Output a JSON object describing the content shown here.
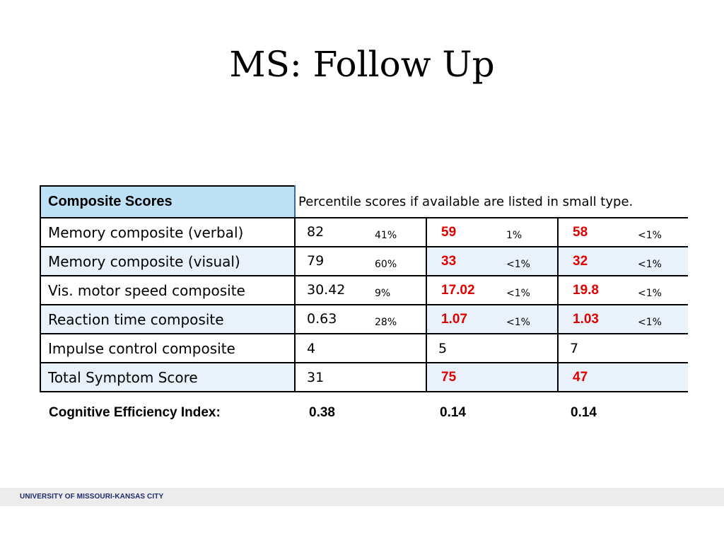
{
  "title": "MS: Follow Up",
  "table": {
    "header_label": "Composite Scores",
    "header_note": "Percentile scores if available are listed in small type.",
    "rows": [
      {
        "label": "Memory composite (verbal)",
        "cells": [
          {
            "value": "82",
            "pct": "41%",
            "flag": false
          },
          {
            "value": "59",
            "pct": "1%",
            "flag": true
          },
          {
            "value": "58",
            "pct": "<1%",
            "flag": true
          }
        ]
      },
      {
        "label": "Memory composite (visual)",
        "cells": [
          {
            "value": "79",
            "pct": "60%",
            "flag": false
          },
          {
            "value": "33",
            "pct": "<1%",
            "flag": true
          },
          {
            "value": "32",
            "pct": "<1%",
            "flag": true
          }
        ]
      },
      {
        "label": "Vis. motor speed composite",
        "cells": [
          {
            "value": "30.42",
            "pct": "9%",
            "flag": false
          },
          {
            "value": "17.02",
            "pct": "<1%",
            "flag": true
          },
          {
            "value": "19.8",
            "pct": "<1%",
            "flag": true
          }
        ]
      },
      {
        "label": "Reaction time composite",
        "cells": [
          {
            "value": "0.63",
            "pct": "28%",
            "flag": false
          },
          {
            "value": "1.07",
            "pct": "<1%",
            "flag": true
          },
          {
            "value": "1.03",
            "pct": "<1%",
            "flag": true
          }
        ]
      },
      {
        "label": "Impulse control composite",
        "cells": [
          {
            "value": "4",
            "pct": "",
            "flag": false
          },
          {
            "value": "5",
            "pct": "",
            "flag": false
          },
          {
            "value": "7",
            "pct": "",
            "flag": false
          }
        ]
      },
      {
        "label": "Total Symptom Score",
        "cells": [
          {
            "value": "31",
            "pct": "",
            "flag": false
          },
          {
            "value": "75",
            "pct": "",
            "flag": true
          },
          {
            "value": "47",
            "pct": "",
            "flag": true
          }
        ]
      }
    ]
  },
  "cognitive_efficiency": {
    "label": "Cognitive Efficiency Index:",
    "values": [
      "0.38",
      "0.14",
      "0.14"
    ]
  },
  "footer": {
    "institution": "UNIVERSITY OF MISSOURI-KANSAS CITY"
  },
  "colors": {
    "flag_red": "#e00000",
    "header_blue": "#bfe1f5",
    "row_alt": "#e9f2fb",
    "footer_text": "#1f2a6b"
  }
}
